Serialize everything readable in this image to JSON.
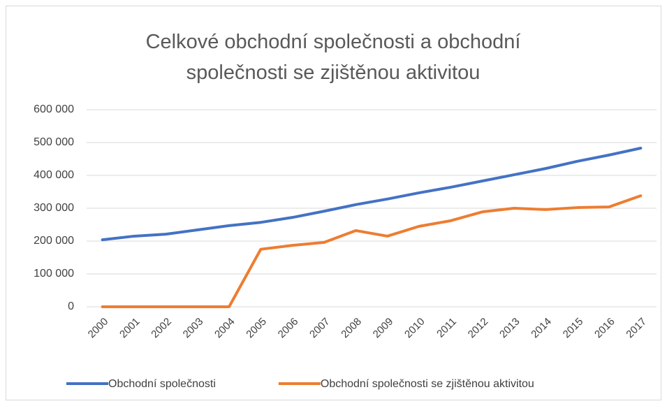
{
  "chart_data": {
    "type": "line",
    "title": "Celkové obchodní společnosti a obchodní společnosti se zjištěnou aktivitou",
    "categories": [
      "2000",
      "2001",
      "2002",
      "2003",
      "2004",
      "2005",
      "2006",
      "2007",
      "2008",
      "2009",
      "2010",
      "2011",
      "2012",
      "2013",
      "2014",
      "2015",
      "2016",
      "2017"
    ],
    "series": [
      {
        "name": "Obchodní společnosti",
        "color": "#4472c4",
        "values": [
          204000,
          215000,
          221000,
          234000,
          247000,
          257000,
          272000,
          291000,
          311000,
          328000,
          347000,
          364000,
          383000,
          402000,
          421000,
          443000,
          462000,
          483000
        ]
      },
      {
        "name": "Obchodní společnosti se zjištěnou aktivitou",
        "color": "#ed7d31",
        "values": [
          0,
          0,
          0,
          0,
          0,
          175000,
          187000,
          196000,
          232000,
          215000,
          245000,
          262000,
          289000,
          300000,
          296000,
          302000,
          304000,
          338000
        ]
      }
    ],
    "ylim": [
      0,
      600000
    ],
    "yticks": [
      0,
      {
        "value": 100000,
        "label": "100 000"
      },
      {
        "value": 200000,
        "label": "200 000"
      },
      {
        "value": 300000,
        "label": "300 000"
      },
      {
        "value": 400000,
        "label": "400 000"
      },
      {
        "value": 500000,
        "label": "500 000"
      },
      {
        "value": 600000,
        "label": "600 000"
      }
    ],
    "grid": true,
    "legend": "bottom"
  }
}
